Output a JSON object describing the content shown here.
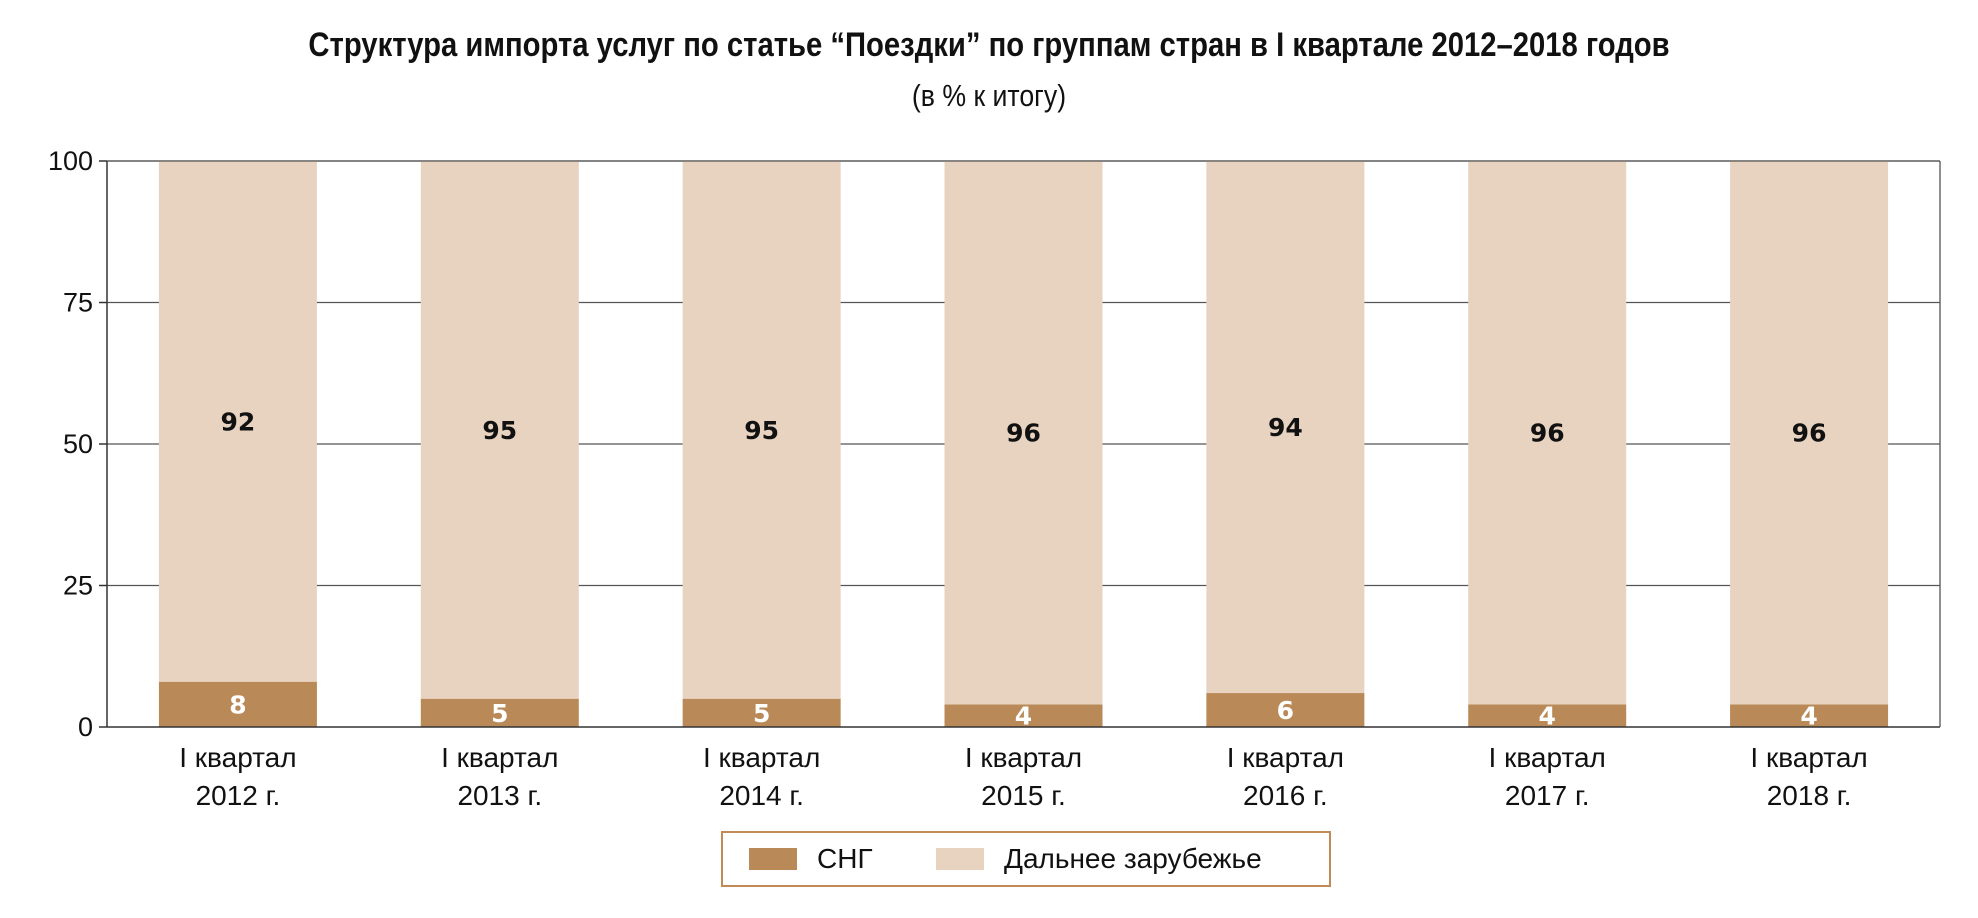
{
  "title": "Структура импорта услуг по статье “Поездки” по группам стран в I квартале 2012–2018 годов",
  "subtitle": "(в % к итогу)",
  "colors": {
    "sng": "#b98a57",
    "far_abroad": "#e8d3c0",
    "grid": "#555555",
    "legend_border": "#c28a57"
  },
  "chart_data": {
    "type": "bar",
    "stacked": true,
    "title": "Структура импорта услуг по статье “Поездки” по группам стран в I квартале 2012–2018 годов",
    "subtitle": "(в % к итогу)",
    "categories": [
      [
        "I квартал",
        "2012 г."
      ],
      [
        "I квартал",
        "2013 г."
      ],
      [
        "I квартал",
        "2014 г."
      ],
      [
        "I квартал",
        "2015 г."
      ],
      [
        "I квартал",
        "2016 г."
      ],
      [
        "I квартал",
        "2017 г."
      ],
      [
        "I квартал",
        "2018 г."
      ]
    ],
    "series": [
      {
        "name": "СНГ",
        "values": [
          8,
          5,
          5,
          4,
          6,
          4,
          4
        ]
      },
      {
        "name": "Дальнее зарубежье",
        "values": [
          92,
          95,
          95,
          96,
          94,
          96,
          96
        ]
      }
    ],
    "ylim": [
      0,
      100
    ],
    "yticks": [
      0,
      25,
      50,
      75,
      100
    ],
    "grid": true,
    "legend": "bottom",
    "xlabel": "",
    "ylabel": ""
  },
  "legend": {
    "items": [
      {
        "label": "СНГ"
      },
      {
        "label": "Дальнее зарубежье"
      }
    ]
  }
}
